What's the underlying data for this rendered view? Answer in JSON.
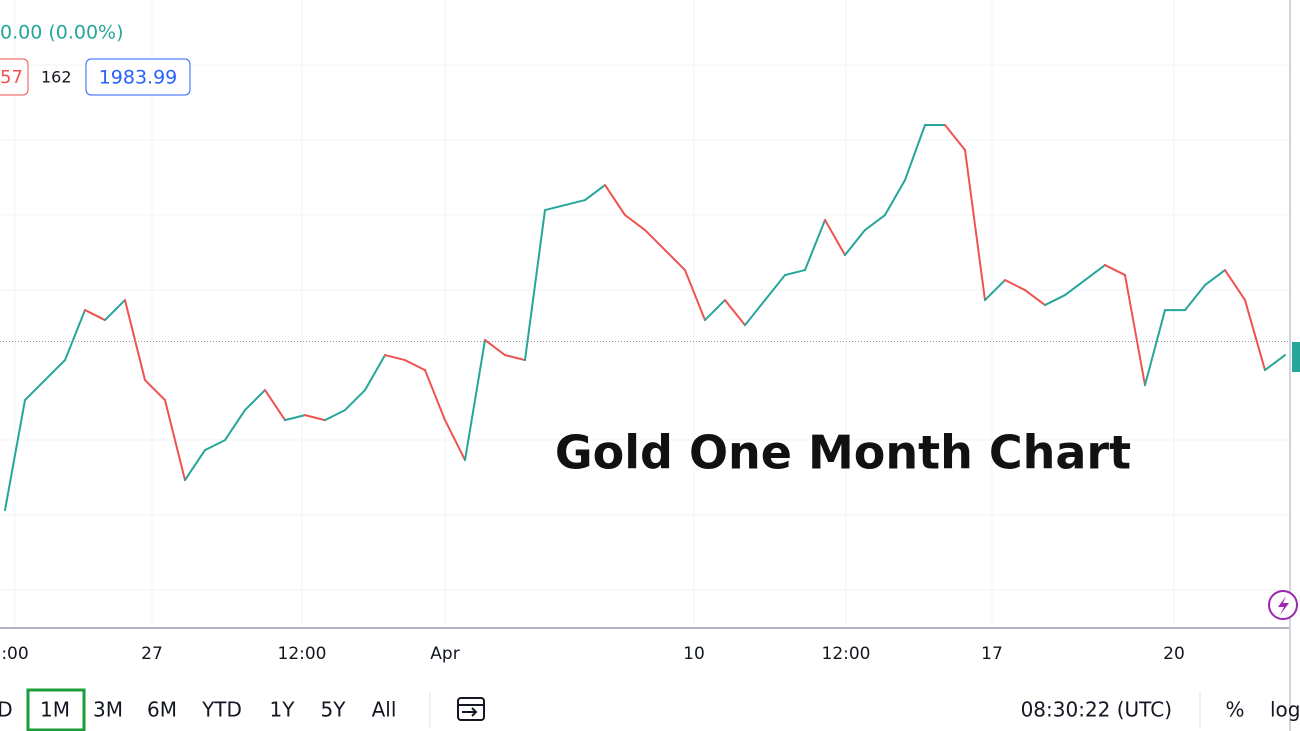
{
  "chart_data": {
    "type": "line",
    "annotation": "Gold One Month Chart",
    "values": [
      1936.8,
      1967.6,
      1973.2,
      1978.8,
      1992.8,
      1990.0,
      1995.6,
      1973.2,
      1967.6,
      1945.2,
      1953.6,
      1956.4,
      1964.8,
      1970.4,
      1962.0,
      1963.4,
      1962.0,
      1964.8,
      1970.4,
      1980.2,
      1978.8,
      1976.0,
      1962.0,
      1950.8,
      1984.4,
      1980.2,
      1978.8,
      2020.8,
      2022.2,
      2023.6,
      2027.8,
      2019.4,
      2015.2,
      2009.6,
      2004.0,
      1990.0,
      1995.6,
      1988.6,
      1995.6,
      2002.6,
      2004.0,
      2018.0,
      2008.2,
      2015.2,
      2019.4,
      2029.2,
      2044.6,
      2044.6,
      2037.6,
      1995.6,
      2001.2,
      1998.4,
      1994.2,
      1997.0,
      2001.2,
      2005.4,
      2002.6,
      1971.8,
      1992.8,
      1992.8,
      1999.8,
      2004.0,
      1995.6,
      1976.0,
      1980.2
    ],
    "up_color": "#26a69a",
    "down_color": "#ef5350",
    "ylim": [
      1903.8,
      2079.6
    ],
    "xlim": [
      -0.25,
      64.25
    ],
    "xticks": [
      {
        "value": 0.5,
        "label": ":00"
      },
      {
        "value": 7.35,
        "label": "27"
      },
      {
        "value": 14.85,
        "label": "12:00"
      },
      {
        "value": 22,
        "label": "Apr"
      },
      {
        "value": 34.45,
        "label": "10"
      },
      {
        "value": 42.05,
        "label": "12:00"
      },
      {
        "value": 49.35,
        "label": "17"
      },
      {
        "value": 58.45,
        "label": "20"
      }
    ],
    "price_line": 1983.99,
    "grid": true
  },
  "legend": {
    "change": "0.00 (0.00%)",
    "bid": "57",
    "spread": "162",
    "ask": "1983.99"
  },
  "toolbar": {
    "ranges": [
      "D",
      "1M",
      "3M",
      "6M",
      "YTD",
      "1Y",
      "5Y",
      "All"
    ],
    "selected": "1M",
    "clock": "08:30:22 (UTC)",
    "percent": "%",
    "log": "log"
  }
}
